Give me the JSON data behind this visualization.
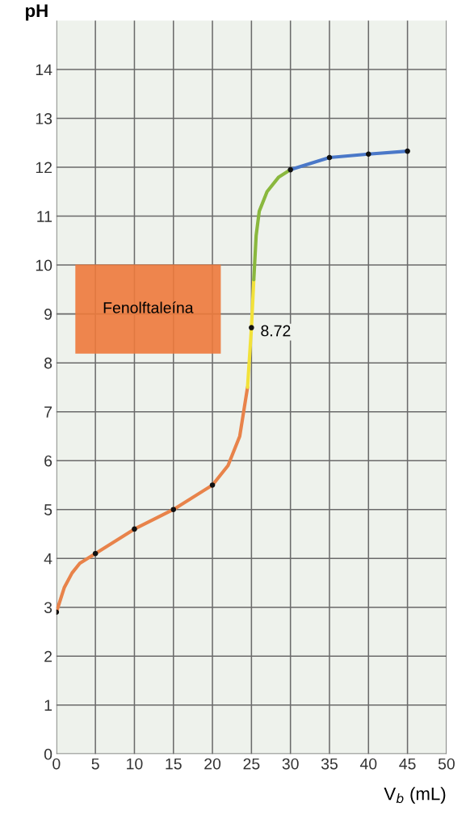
{
  "chart_data": {
    "type": "line",
    "xlabel": "V$_{b}$ (mL)",
    "ylabel": "pH",
    "xlim": [
      0,
      50
    ],
    "ylim": [
      0,
      15
    ],
    "xticks": [
      0,
      5,
      10,
      15,
      20,
      25,
      30,
      35,
      40,
      45,
      50
    ],
    "yticks": [
      0,
      1,
      2,
      3,
      4,
      5,
      6,
      7,
      8,
      9,
      10,
      11,
      12,
      13,
      14
    ],
    "grid": true,
    "line_style": "solid",
    "marker": "none",
    "series": [
      {
        "color": "#e8834a",
        "x": [
          0,
          1,
          2,
          3,
          5,
          10,
          15,
          20,
          22,
          23.5,
          24.5
        ],
        "values": [
          2.9,
          3.4,
          3.7,
          3.9,
          4.1,
          4.6,
          5.0,
          5.5,
          5.9,
          6.5,
          7.5
        ]
      },
      {
        "color": "#f2e23a",
        "x": [
          24.5,
          25,
          25.3
        ],
        "values": [
          7.5,
          8.72,
          9.7
        ]
      },
      {
        "color": "#8ab83e",
        "x": [
          25.3,
          25.6,
          26,
          27,
          28.5,
          30
        ],
        "values": [
          9.7,
          10.6,
          11.1,
          11.5,
          11.8,
          11.95
        ]
      },
      {
        "color": "#4a78c8",
        "x": [
          30,
          35,
          40,
          45
        ],
        "values": [
          11.95,
          12.2,
          12.27,
          12.33
        ]
      },
      {
        "type": "scatter",
        "marker": "circle",
        "color": "#111111",
        "x": [
          0,
          5,
          10,
          15,
          20,
          25,
          30,
          35,
          40,
          45
        ],
        "values": [
          2.9,
          4.1,
          4.6,
          5.0,
          5.5,
          8.72,
          11.95,
          12.2,
          12.27,
          12.33
        ]
      }
    ],
    "bands": [
      {
        "axis": "y",
        "from": 8.2,
        "to": 10,
        "label": "Fenolftaleína",
        "color": "#ee7a3c"
      }
    ],
    "annotations": [
      {
        "text": "8.72",
        "x": 25,
        "y": 8.72
      }
    ]
  }
}
